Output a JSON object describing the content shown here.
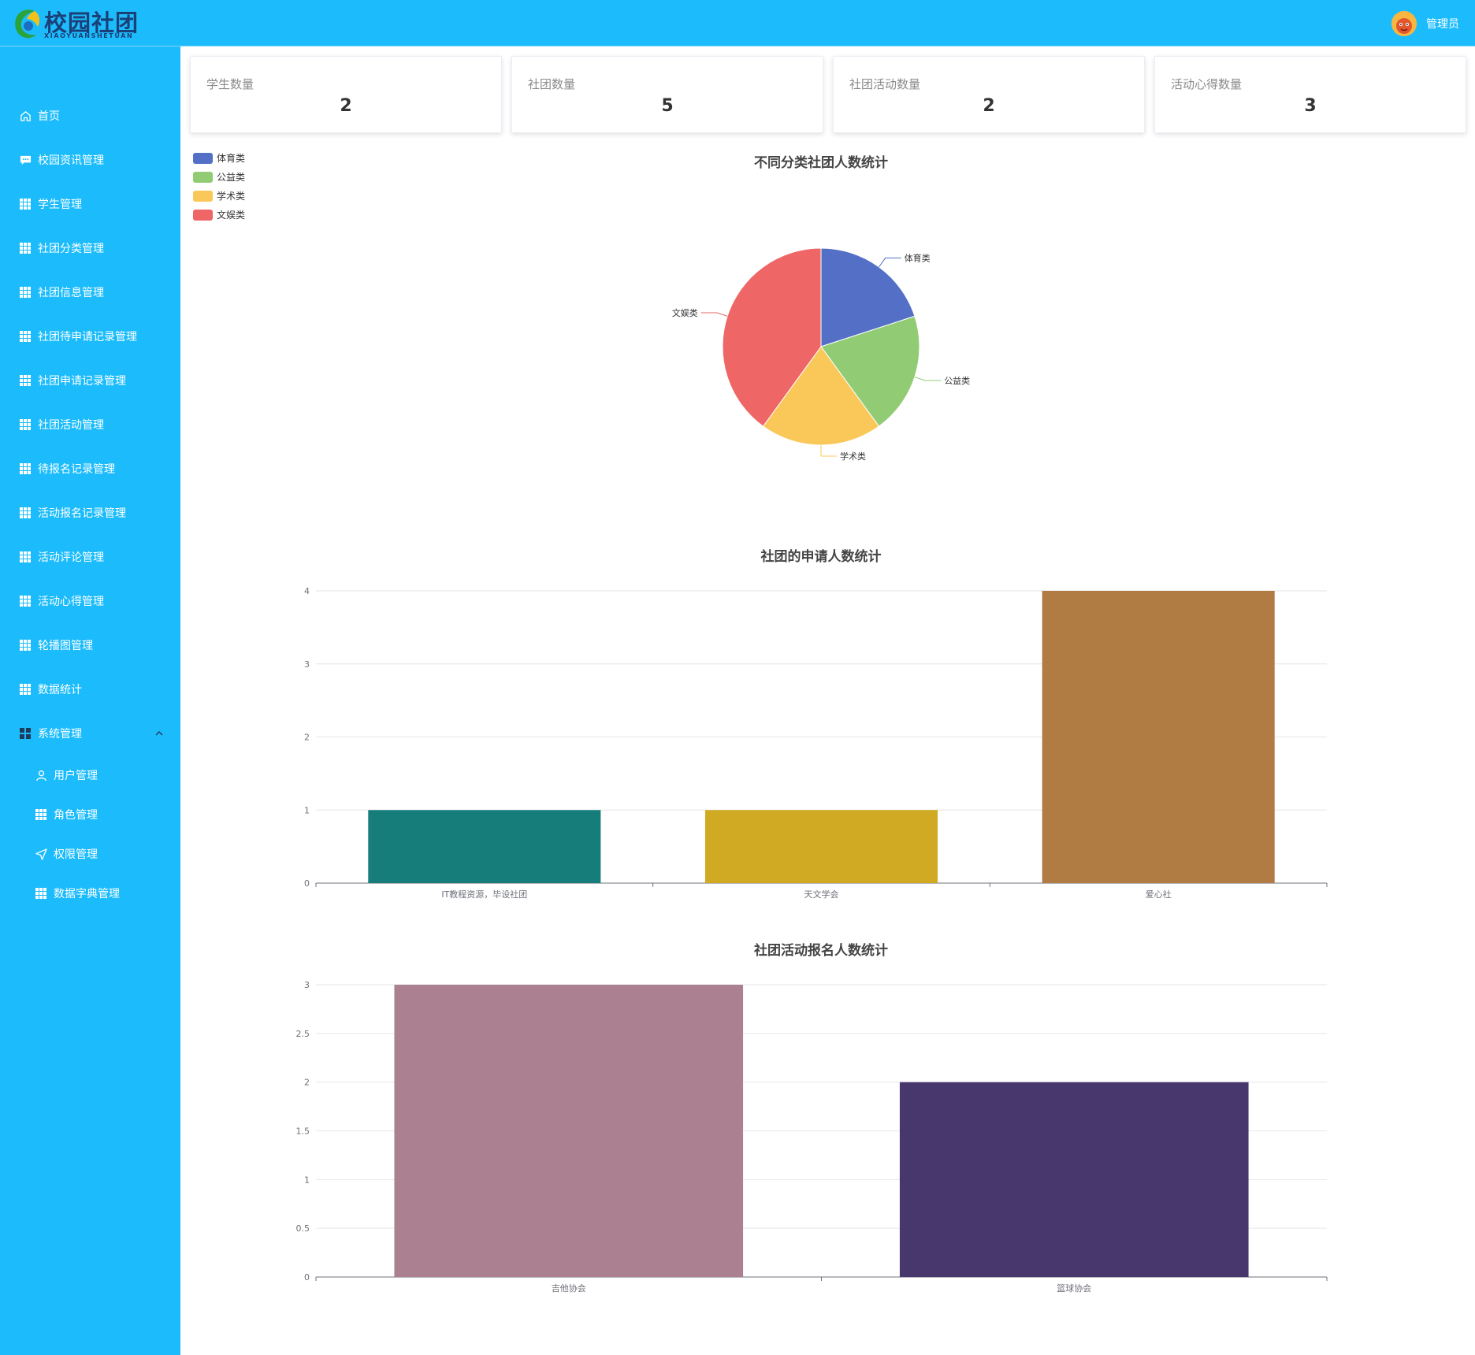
{
  "header": {
    "logo_title": "校园社团",
    "logo_subtitle": "XIAOYUANSHETUAN",
    "user_name": "管理员"
  },
  "sidebar": {
    "items": [
      {
        "label": "首页",
        "icon": "home-icon"
      },
      {
        "label": "校园资讯管理",
        "icon": "message-icon"
      },
      {
        "label": "学生管理",
        "icon": "grid-icon"
      },
      {
        "label": "社团分类管理",
        "icon": "grid-icon"
      },
      {
        "label": "社团信息管理",
        "icon": "grid-icon"
      },
      {
        "label": "社团待申请记录管理",
        "icon": "grid-icon"
      },
      {
        "label": "社团申请记录管理",
        "icon": "grid-icon"
      },
      {
        "label": "社团活动管理",
        "icon": "grid-icon"
      },
      {
        "label": "待报名记录管理",
        "icon": "grid-icon"
      },
      {
        "label": "活动报名记录管理",
        "icon": "grid-icon"
      },
      {
        "label": "活动评论管理",
        "icon": "grid-icon"
      },
      {
        "label": "活动心得管理",
        "icon": "grid-icon"
      },
      {
        "label": "轮播图管理",
        "icon": "grid-icon"
      },
      {
        "label": "数据统计",
        "icon": "grid-icon"
      },
      {
        "label": "系统管理",
        "icon": "menu-icon"
      }
    ],
    "subitems": [
      {
        "label": "用户管理",
        "icon": "user-icon"
      },
      {
        "label": "角色管理",
        "icon": "grid-icon"
      },
      {
        "label": "权限管理",
        "icon": "send-icon"
      },
      {
        "label": "数据字典管理",
        "icon": "grid-icon"
      }
    ]
  },
  "stats": [
    {
      "title": "学生数量",
      "value": "2"
    },
    {
      "title": "社团数量",
      "value": "5"
    },
    {
      "title": "社团活动数量",
      "value": "2"
    },
    {
      "title": "活动心得数量",
      "value": "3"
    }
  ],
  "chart_data": [
    {
      "type": "pie",
      "title": "不同分类社团人数统计",
      "legend_position": "top-left",
      "slices": [
        {
          "name": "体育类",
          "value": 1,
          "color": "#5470c6"
        },
        {
          "name": "公益类",
          "value": 1,
          "color": "#91cc75"
        },
        {
          "name": "学术类",
          "value": 1,
          "color": "#fac858"
        },
        {
          "name": "文娱类",
          "value": 2,
          "color": "#ee6666"
        }
      ]
    },
    {
      "type": "bar",
      "title": "社团的申请人数统计",
      "categories": [
        "IT教程资源，毕设社团",
        "天文学会",
        "爱心社"
      ],
      "values": [
        1,
        1,
        4
      ],
      "colors": [
        "#177d7b",
        "#cfaa22",
        "#b07c44"
      ],
      "yticks": [
        "0",
        "1",
        "2",
        "3",
        "4"
      ],
      "ylim": [
        0,
        4
      ],
      "grid": true
    },
    {
      "type": "bar",
      "title": "社团活动报名人数统计",
      "categories": [
        "吉他协会",
        "篮球协会"
      ],
      "values": [
        3,
        2
      ],
      "colors": [
        "#ab8090",
        "#47376d"
      ],
      "yticks": [
        "0",
        "0.5",
        "1",
        "1.5",
        "2",
        "2.5",
        "3"
      ],
      "ylim": [
        0,
        3
      ],
      "grid": true
    }
  ]
}
